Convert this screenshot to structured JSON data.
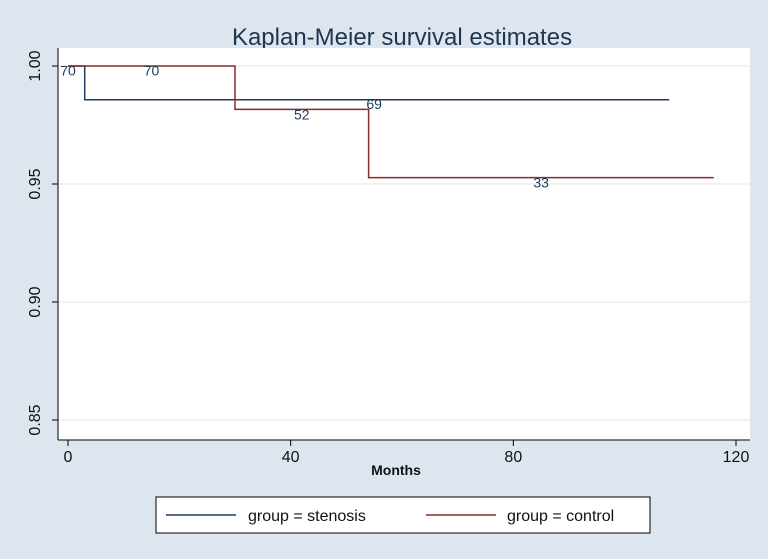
{
  "chart_data": {
    "type": "line",
    "step": true,
    "title": "Kaplan-Meier survival estimates",
    "xlabel": "Months",
    "ylabel": "",
    "xlim": [
      0,
      120
    ],
    "ylim": [
      0.85,
      1.0
    ],
    "x_ticks": [
      0,
      40,
      80,
      120
    ],
    "y_ticks": [
      0.85,
      0.9,
      0.95,
      1.0
    ],
    "x_tick_labels": [
      "0",
      "40",
      "80",
      "120"
    ],
    "y_tick_labels": [
      "0.85",
      "0.90",
      "0.95",
      "1.00"
    ],
    "grid": true,
    "legend_position": "bottom",
    "series": [
      {
        "name": "group = stenosis",
        "color": "#1f3c5c",
        "points": [
          [
            0,
            1.0
          ],
          [
            3,
            1.0
          ],
          [
            3,
            0.9857
          ],
          [
            108,
            0.9857
          ]
        ],
        "at_risk": [
          {
            "x": 0,
            "y": 0.998,
            "label": "70"
          },
          {
            "x": 55,
            "y": 0.9838,
            "label": "69"
          }
        ]
      },
      {
        "name": "group = control",
        "color": "#8b2a2a",
        "points": [
          [
            0,
            1.0
          ],
          [
            30,
            1.0
          ],
          [
            30,
            0.9816
          ],
          [
            54,
            0.9816
          ],
          [
            54,
            0.9527
          ],
          [
            116,
            0.9527
          ]
        ],
        "at_risk": [
          {
            "x": 15,
            "y": 0.998,
            "label": "70"
          },
          {
            "x": 42,
            "y": 0.9795,
            "label": "52"
          },
          {
            "x": 85,
            "y": 0.9507,
            "label": "33"
          }
        ]
      }
    ]
  }
}
